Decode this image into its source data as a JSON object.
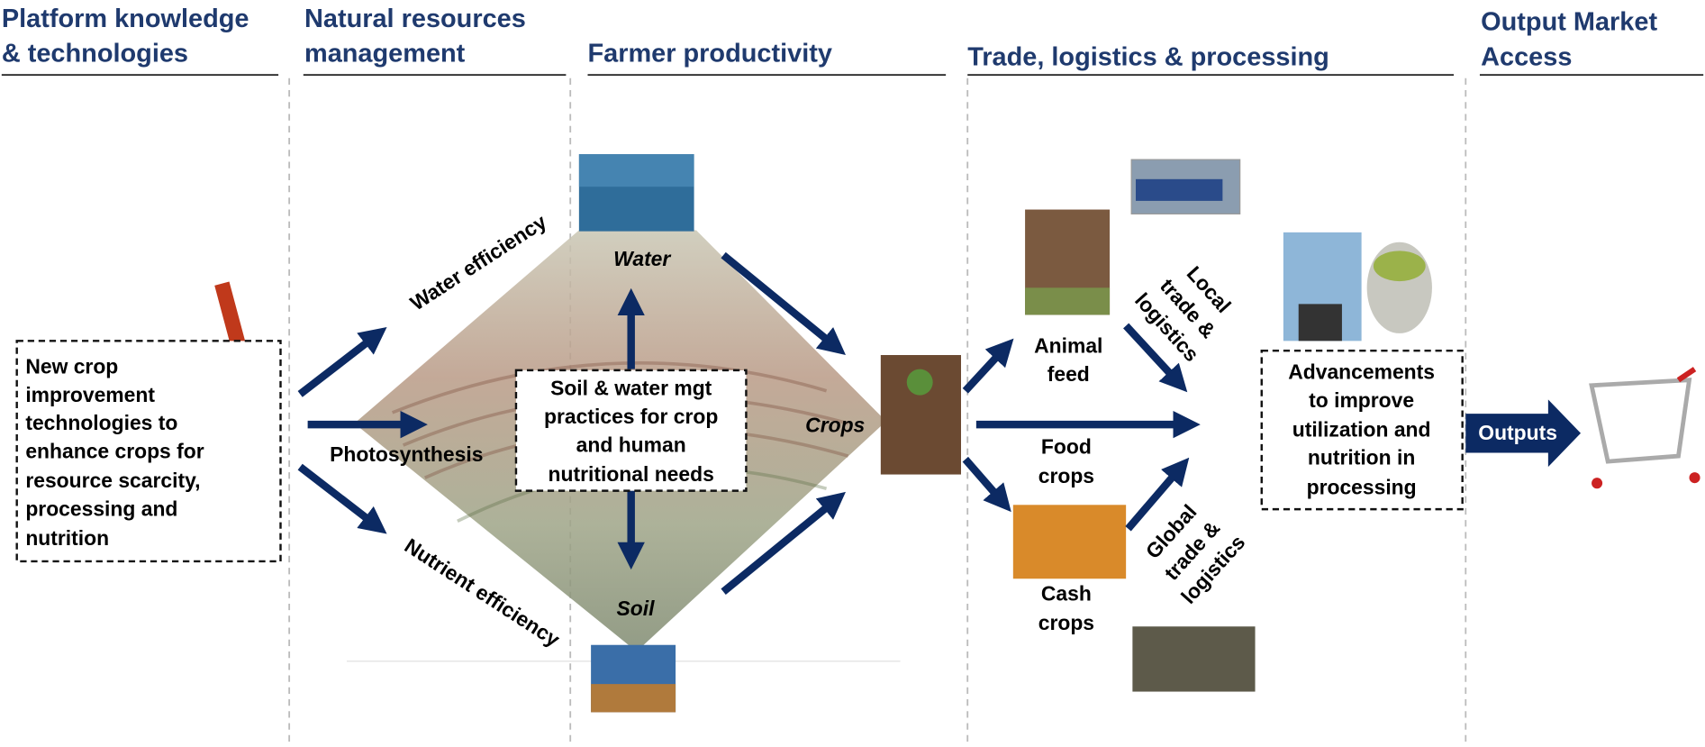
{
  "columns": [
    {
      "title_lines": [
        "Platform knowledge",
        "& technologies"
      ]
    },
    {
      "title_lines": [
        "Natural resources",
        "management"
      ]
    },
    {
      "title_lines": [
        "Farmer productivity"
      ]
    },
    {
      "title_lines": [
        "Trade, logistics & processing"
      ]
    },
    {
      "title_lines": [
        "Output Market",
        "Access"
      ]
    }
  ],
  "innovation_box": {
    "lines": [
      "New crop",
      "improvement",
      "technologies to",
      "enhance crops for",
      "resource scarcity,",
      "processing and",
      "nutrition"
    ]
  },
  "efficiencies": {
    "water": "Water efficiency",
    "photosynthesis": "Photosynthesis",
    "nutrient": "Nutrient efficiency"
  },
  "diamond": {
    "top": "Water",
    "bottom": "Soil",
    "right": "Crops"
  },
  "center_box": {
    "lines": [
      "Soil & water mgt",
      "practices for crop",
      "and human",
      "nutritional  needs"
    ]
  },
  "crop_types": [
    {
      "lines": [
        "Animal",
        "feed"
      ]
    },
    {
      "lines": [
        "Food",
        "crops"
      ]
    },
    {
      "lines": [
        "Cash",
        "crops"
      ]
    }
  ],
  "local_trade": {
    "lines": [
      "Local",
      "trade &",
      "logistics"
    ]
  },
  "global_trade": {
    "lines": [
      "Global",
      "trade &",
      "logistics"
    ]
  },
  "processing_box": {
    "lines": [
      "Advancements",
      "to improve",
      "utilization and",
      "nutrition in",
      "processing"
    ]
  },
  "output": "Outputs"
}
